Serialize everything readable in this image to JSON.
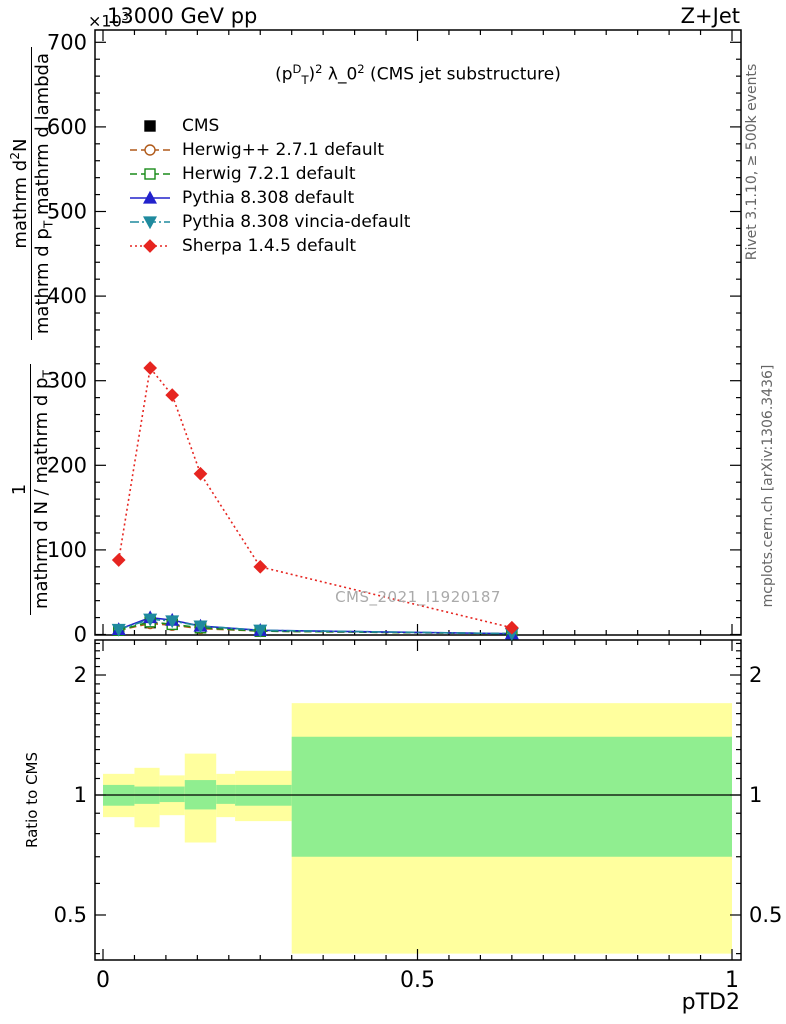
{
  "header": {
    "left": "13000 GeV pp",
    "right": "Z+Jet",
    "y_mult_base": "×10",
    "y_mult_exp": "3"
  },
  "title": {
    "open": "(p",
    "sup_d": "D",
    "sub_t": "T",
    "close": ")",
    "exp1": "2",
    "lambda": " λ_0",
    "exp2": "2",
    "suffix": " (CMS jet substructure)"
  },
  "side": {
    "rivet": "Rivet 3.1.10, ≥ 500k events",
    "mcplots": "mcplots.cern.ch [arXiv:1306.3436]"
  },
  "watermark": "CMS_2021_I1920187",
  "ratio_label": "Ratio to CMS",
  "y_axis_label": {
    "num1": "1",
    "den1_base": "mathrm d N / mathrm d p",
    "den1_sub": "T",
    "num2_a": "mathrm d",
    "num2_sup": "2",
    "num2_b": "N",
    "den2_a": "mathrm d p",
    "den2_sub": "T",
    "den2_b": " mathrm d lambda"
  },
  "chart_data": {
    "type": "line",
    "title": "(p_T^D)^2 λ_0^2 (CMS jet substructure)",
    "xlabel": "pTD2",
    "ylabel": "1 / (mathrm d N / mathrm d p_T) · mathrm d²N / (mathrm d p_T mathrm d lambda)",
    "xlim": [
      0,
      1
    ],
    "main_ylim": [
      0,
      700
    ],
    "y_multiplier": "×10³",
    "x": [
      0.025,
      0.075,
      0.11,
      0.155,
      0.25,
      0.65
    ],
    "series": [
      {
        "name": "CMS",
        "color": "#000000",
        "marker": "square",
        "fill": true,
        "line": "none",
        "values": [
          5,
          14,
          12,
          8,
          4,
          1
        ]
      },
      {
        "name": "Herwig++ 2.7.1 default",
        "color": "#b05a1a",
        "marker": "circle",
        "fill": false,
        "line": "dashed",
        "values": [
          5,
          13,
          11,
          7,
          4,
          1
        ]
      },
      {
        "name": "Herwig 7.2.1 default",
        "color": "#1a8c1a",
        "marker": "square",
        "fill": false,
        "line": "dashed",
        "values": [
          5,
          15,
          12,
          8,
          4,
          1
        ]
      },
      {
        "name": "Pythia 8.308 default",
        "color": "#2222cc",
        "marker": "triangle-up",
        "fill": true,
        "line": "solid",
        "values": [
          6,
          20,
          17,
          10,
          5,
          1
        ]
      },
      {
        "name": "Pythia 8.308 vincia-default",
        "color": "#1f8a9e",
        "marker": "triangle-down",
        "fill": true,
        "line": "dashdot",
        "values": [
          6,
          18,
          16,
          10,
          5,
          1
        ]
      },
      {
        "name": "Sherpa 1.4.5 default",
        "color": "#e62520",
        "marker": "diamond",
        "fill": true,
        "line": "dotted",
        "values": [
          88,
          315,
          283,
          190,
          80,
          8
        ]
      }
    ],
    "ratio": {
      "ylabel": "Ratio to CMS",
      "scale": "log",
      "ylim": [
        0.386,
        2.45
      ],
      "line_at": 1,
      "band_colors": {
        "outer": "#ffff9e",
        "inner": "#90ee90"
      },
      "bands": [
        {
          "xlo": 0.0,
          "xhi": 0.05,
          "y_lo": 0.88,
          "y_hi": 1.13,
          "g_lo": 0.94,
          "g_hi": 1.06
        },
        {
          "xlo": 0.05,
          "xhi": 0.09,
          "y_lo": 0.83,
          "y_hi": 1.17,
          "g_lo": 0.95,
          "g_hi": 1.05
        },
        {
          "xlo": 0.09,
          "xhi": 0.13,
          "y_lo": 0.89,
          "y_hi": 1.12,
          "g_lo": 0.96,
          "g_hi": 1.05
        },
        {
          "xlo": 0.13,
          "xhi": 0.18,
          "y_lo": 0.76,
          "y_hi": 1.27,
          "g_lo": 0.92,
          "g_hi": 1.09
        },
        {
          "xlo": 0.18,
          "xhi": 0.21,
          "y_lo": 0.88,
          "y_hi": 1.13,
          "g_lo": 0.95,
          "g_hi": 1.06
        },
        {
          "xlo": 0.21,
          "xhi": 0.3,
          "y_lo": 0.86,
          "y_hi": 1.15,
          "g_lo": 0.94,
          "g_hi": 1.06
        },
        {
          "xlo": 0.3,
          "xhi": 1.0,
          "y_lo": 0.4,
          "y_hi": 1.7,
          "g_lo": 0.7,
          "g_hi": 1.4
        }
      ]
    },
    "axes": {
      "x_major": [
        0,
        0.5,
        1
      ],
      "x_labels": [
        "0",
        "0.5",
        "1"
      ],
      "x_minor_step": 0.05,
      "main_y_max": 700,
      "main_y_major_step": 100,
      "main_y_minor_step": 20,
      "ratio_y_major": [
        0.5,
        1,
        2
      ],
      "ratio_y_labels": [
        "0.5",
        "1",
        "2"
      ],
      "ratio_y_minor": [
        0.4,
        0.6,
        0.7,
        0.8,
        0.9,
        1.1,
        1.2,
        1.3,
        1.4,
        1.5,
        1.6,
        1.7,
        1.8,
        1.9,
        2.1,
        2.2,
        2.3,
        2.4
      ]
    }
  }
}
